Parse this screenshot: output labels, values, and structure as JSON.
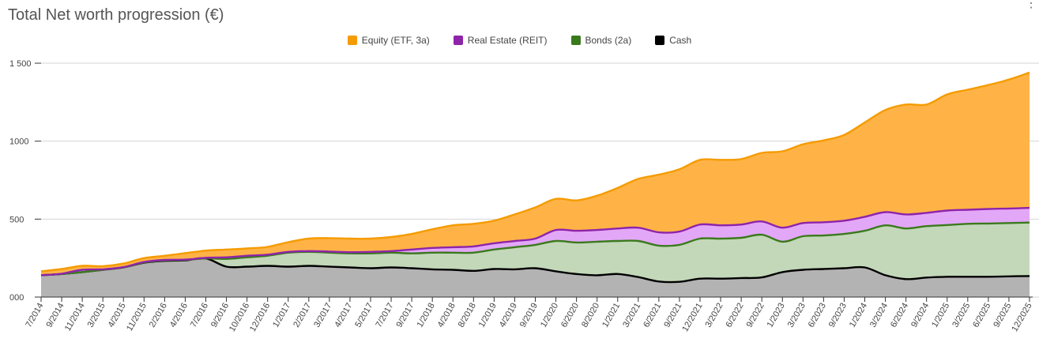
{
  "page": {
    "title": "Total Net worth progression (€)",
    "menu_icon": "more-vert-icon"
  },
  "chart_data": {
    "type": "area",
    "title": "Total Net worth progression (€)",
    "stacked": true,
    "ylim": [
      0,
      1500
    ],
    "yticks": [
      0,
      500,
      1000,
      1500
    ],
    "ytick_labels": [
      "000",
      "500",
      "1000",
      "1 500"
    ],
    "legend_position": "top-center",
    "grid": true,
    "categories": [
      "7/2014",
      "9/2014",
      "11/2014",
      "3/2015",
      "4/2015",
      "11/2015",
      "2/2016",
      "4/2016",
      "7/2016",
      "9/2016",
      "10/2016",
      "12/2016",
      "1/2017",
      "2/2017",
      "3/2017",
      "4/2017",
      "5/2017",
      "7/2017",
      "9/2017",
      "1/2018",
      "4/2018",
      "8/2018",
      "1/2019",
      "4/2019",
      "9/2019",
      "1/2020",
      "6/2020",
      "8/2020",
      "1/2021",
      "3/2021",
      "6/2021",
      "9/2021",
      "12/2021",
      "3/2022",
      "6/2022",
      "9/2022",
      "1/2023",
      "3/2023",
      "6/2023",
      "9/2023",
      "1/2024",
      "3/2024",
      "6/2024",
      "9/2024",
      "1/2025",
      "3/2025",
      "6/2025",
      "9/2025",
      "12/2025"
    ],
    "series": [
      {
        "name": "Cash",
        "color": "#000000",
        "fill": "#b3b3b3",
        "values": [
          140,
          148,
          160,
          175,
          190,
          220,
          232,
          235,
          248,
          195,
          195,
          200,
          195,
          200,
          195,
          190,
          185,
          190,
          185,
          178,
          175,
          168,
          180,
          178,
          185,
          165,
          148,
          140,
          148,
          128,
          100,
          98,
          118,
          118,
          122,
          126,
          160,
          175,
          180,
          185,
          190,
          140,
          115,
          125,
          130,
          130,
          130,
          133,
          135
        ]
      },
      {
        "name": "Bonds (2a)",
        "color": "#3a7a1c",
        "fill": "#c3d7b9",
        "values": [
          140,
          148,
          160,
          175,
          190,
          222,
          235,
          238,
          248,
          245,
          255,
          265,
          285,
          290,
          285,
          280,
          280,
          285,
          280,
          285,
          285,
          285,
          305,
          320,
          335,
          360,
          350,
          355,
          360,
          360,
          330,
          335,
          375,
          375,
          380,
          400,
          355,
          390,
          395,
          405,
          425,
          460,
          440,
          455,
          462,
          470,
          472,
          475,
          478
        ]
      },
      {
        "name": "Real Estate (REIT)",
        "color": "#8e24aa",
        "fill": "#e3a7f7",
        "values": [
          140,
          150,
          175,
          178,
          192,
          225,
          238,
          240,
          252,
          255,
          265,
          272,
          290,
          295,
          292,
          288,
          290,
          295,
          305,
          315,
          320,
          325,
          345,
          360,
          375,
          430,
          425,
          430,
          440,
          445,
          415,
          420,
          465,
          460,
          465,
          485,
          445,
          475,
          480,
          490,
          515,
          545,
          530,
          540,
          555,
          560,
          565,
          568,
          572
        ]
      },
      {
        "name": "Equity (ETF, 3a)",
        "color": "#f59b00",
        "fill": "#ffb347",
        "values": [
          165,
          180,
          200,
          198,
          215,
          250,
          265,
          282,
          298,
          305,
          312,
          322,
          352,
          375,
          378,
          375,
          375,
          385,
          405,
          435,
          460,
          470,
          490,
          530,
          575,
          630,
          620,
          650,
          700,
          758,
          785,
          820,
          880,
          880,
          885,
          925,
          935,
          980,
          1005,
          1040,
          1120,
          1200,
          1235,
          1235,
          1300,
          1330,
          1360,
          1395,
          1440
        ]
      }
    ],
    "legend_order": [
      "Equity (ETF, 3a)",
      "Real Estate (REIT)",
      "Bonds (2a)",
      "Cash"
    ]
  }
}
